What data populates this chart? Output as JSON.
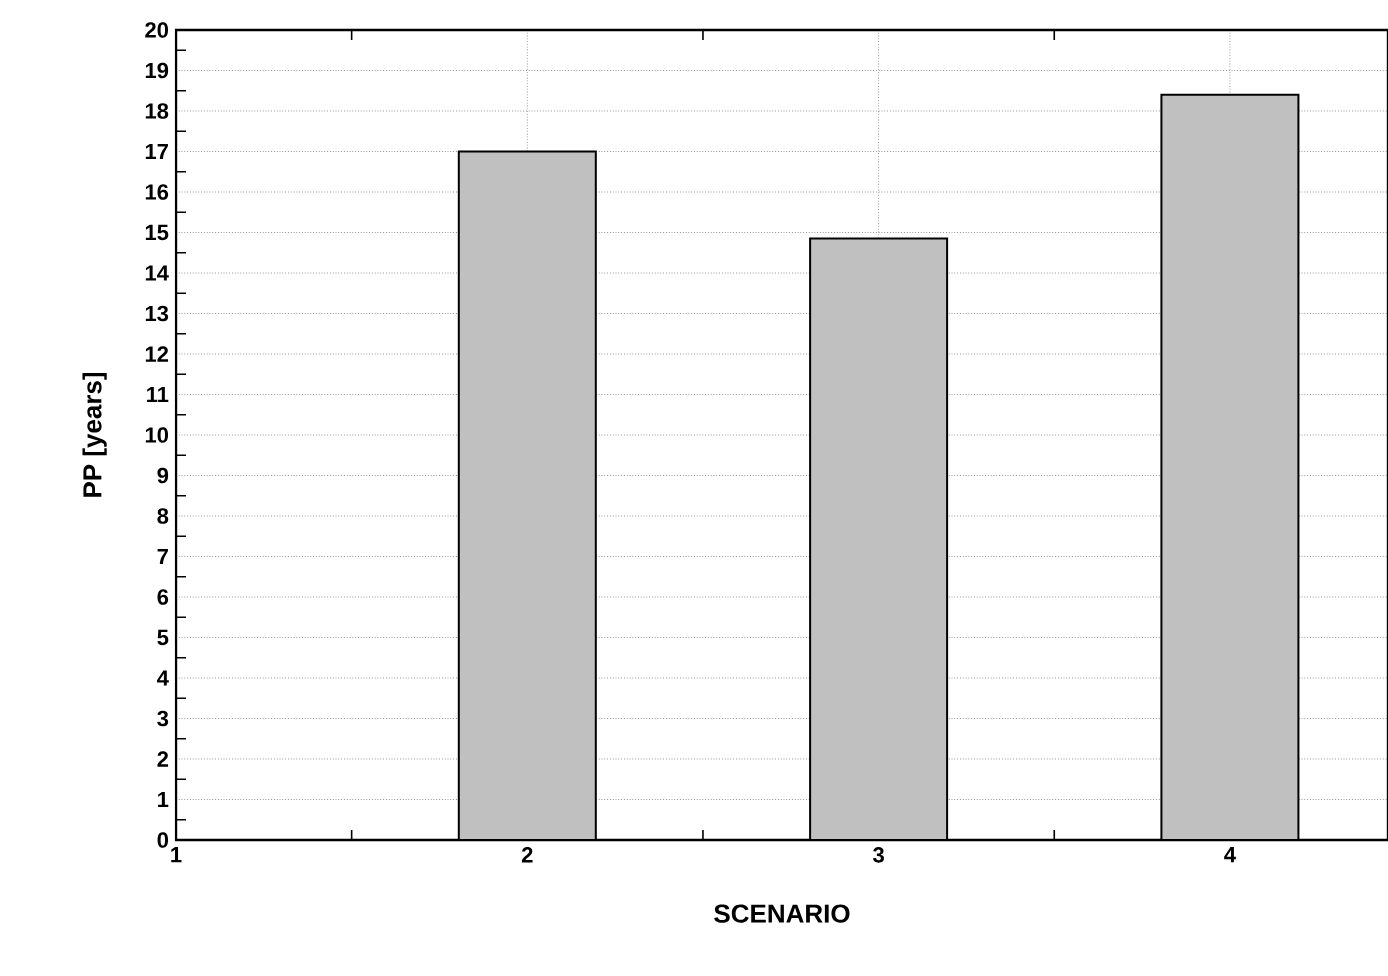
{
  "chart_data": {
    "type": "bar",
    "xlabel": "SCENARIO",
    "ylabel": "PP  [years]",
    "x": [
      2,
      3,
      4
    ],
    "values": [
      17.0,
      14.85,
      18.4
    ],
    "color": "#c0c0c0",
    "xlim": [
      1,
      4.45
    ],
    "xticks": [
      1,
      2,
      3,
      4
    ],
    "ylim": [
      0,
      20
    ],
    "yticks": [
      0,
      1,
      2,
      3,
      4,
      5,
      6,
      7,
      8,
      9,
      10,
      11,
      12,
      13,
      14,
      15,
      16,
      17,
      18,
      19,
      20
    ],
    "grid": true
  }
}
